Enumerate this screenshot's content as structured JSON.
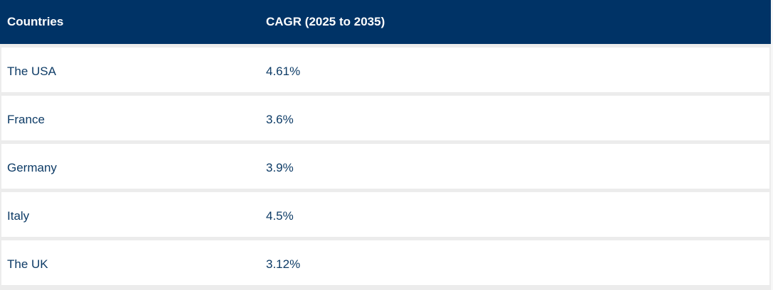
{
  "table": {
    "headers": {
      "country": "Countries",
      "cagr": "CAGR (2025 to 2035)"
    },
    "rows": [
      {
        "country": "The USA",
        "cagr": "4.61%"
      },
      {
        "country": "France",
        "cagr": "3.6%"
      },
      {
        "country": "Germany",
        "cagr": "3.9%"
      },
      {
        "country": "Italy",
        "cagr": "4.5%"
      },
      {
        "country": "The UK",
        "cagr": "3.12%"
      }
    ]
  },
  "colors": {
    "header_background": "#003366",
    "header_text": "#ffffff",
    "cell_text": "#0d3b66",
    "row_background": "#ffffff",
    "row_separator": "#ececec"
  }
}
